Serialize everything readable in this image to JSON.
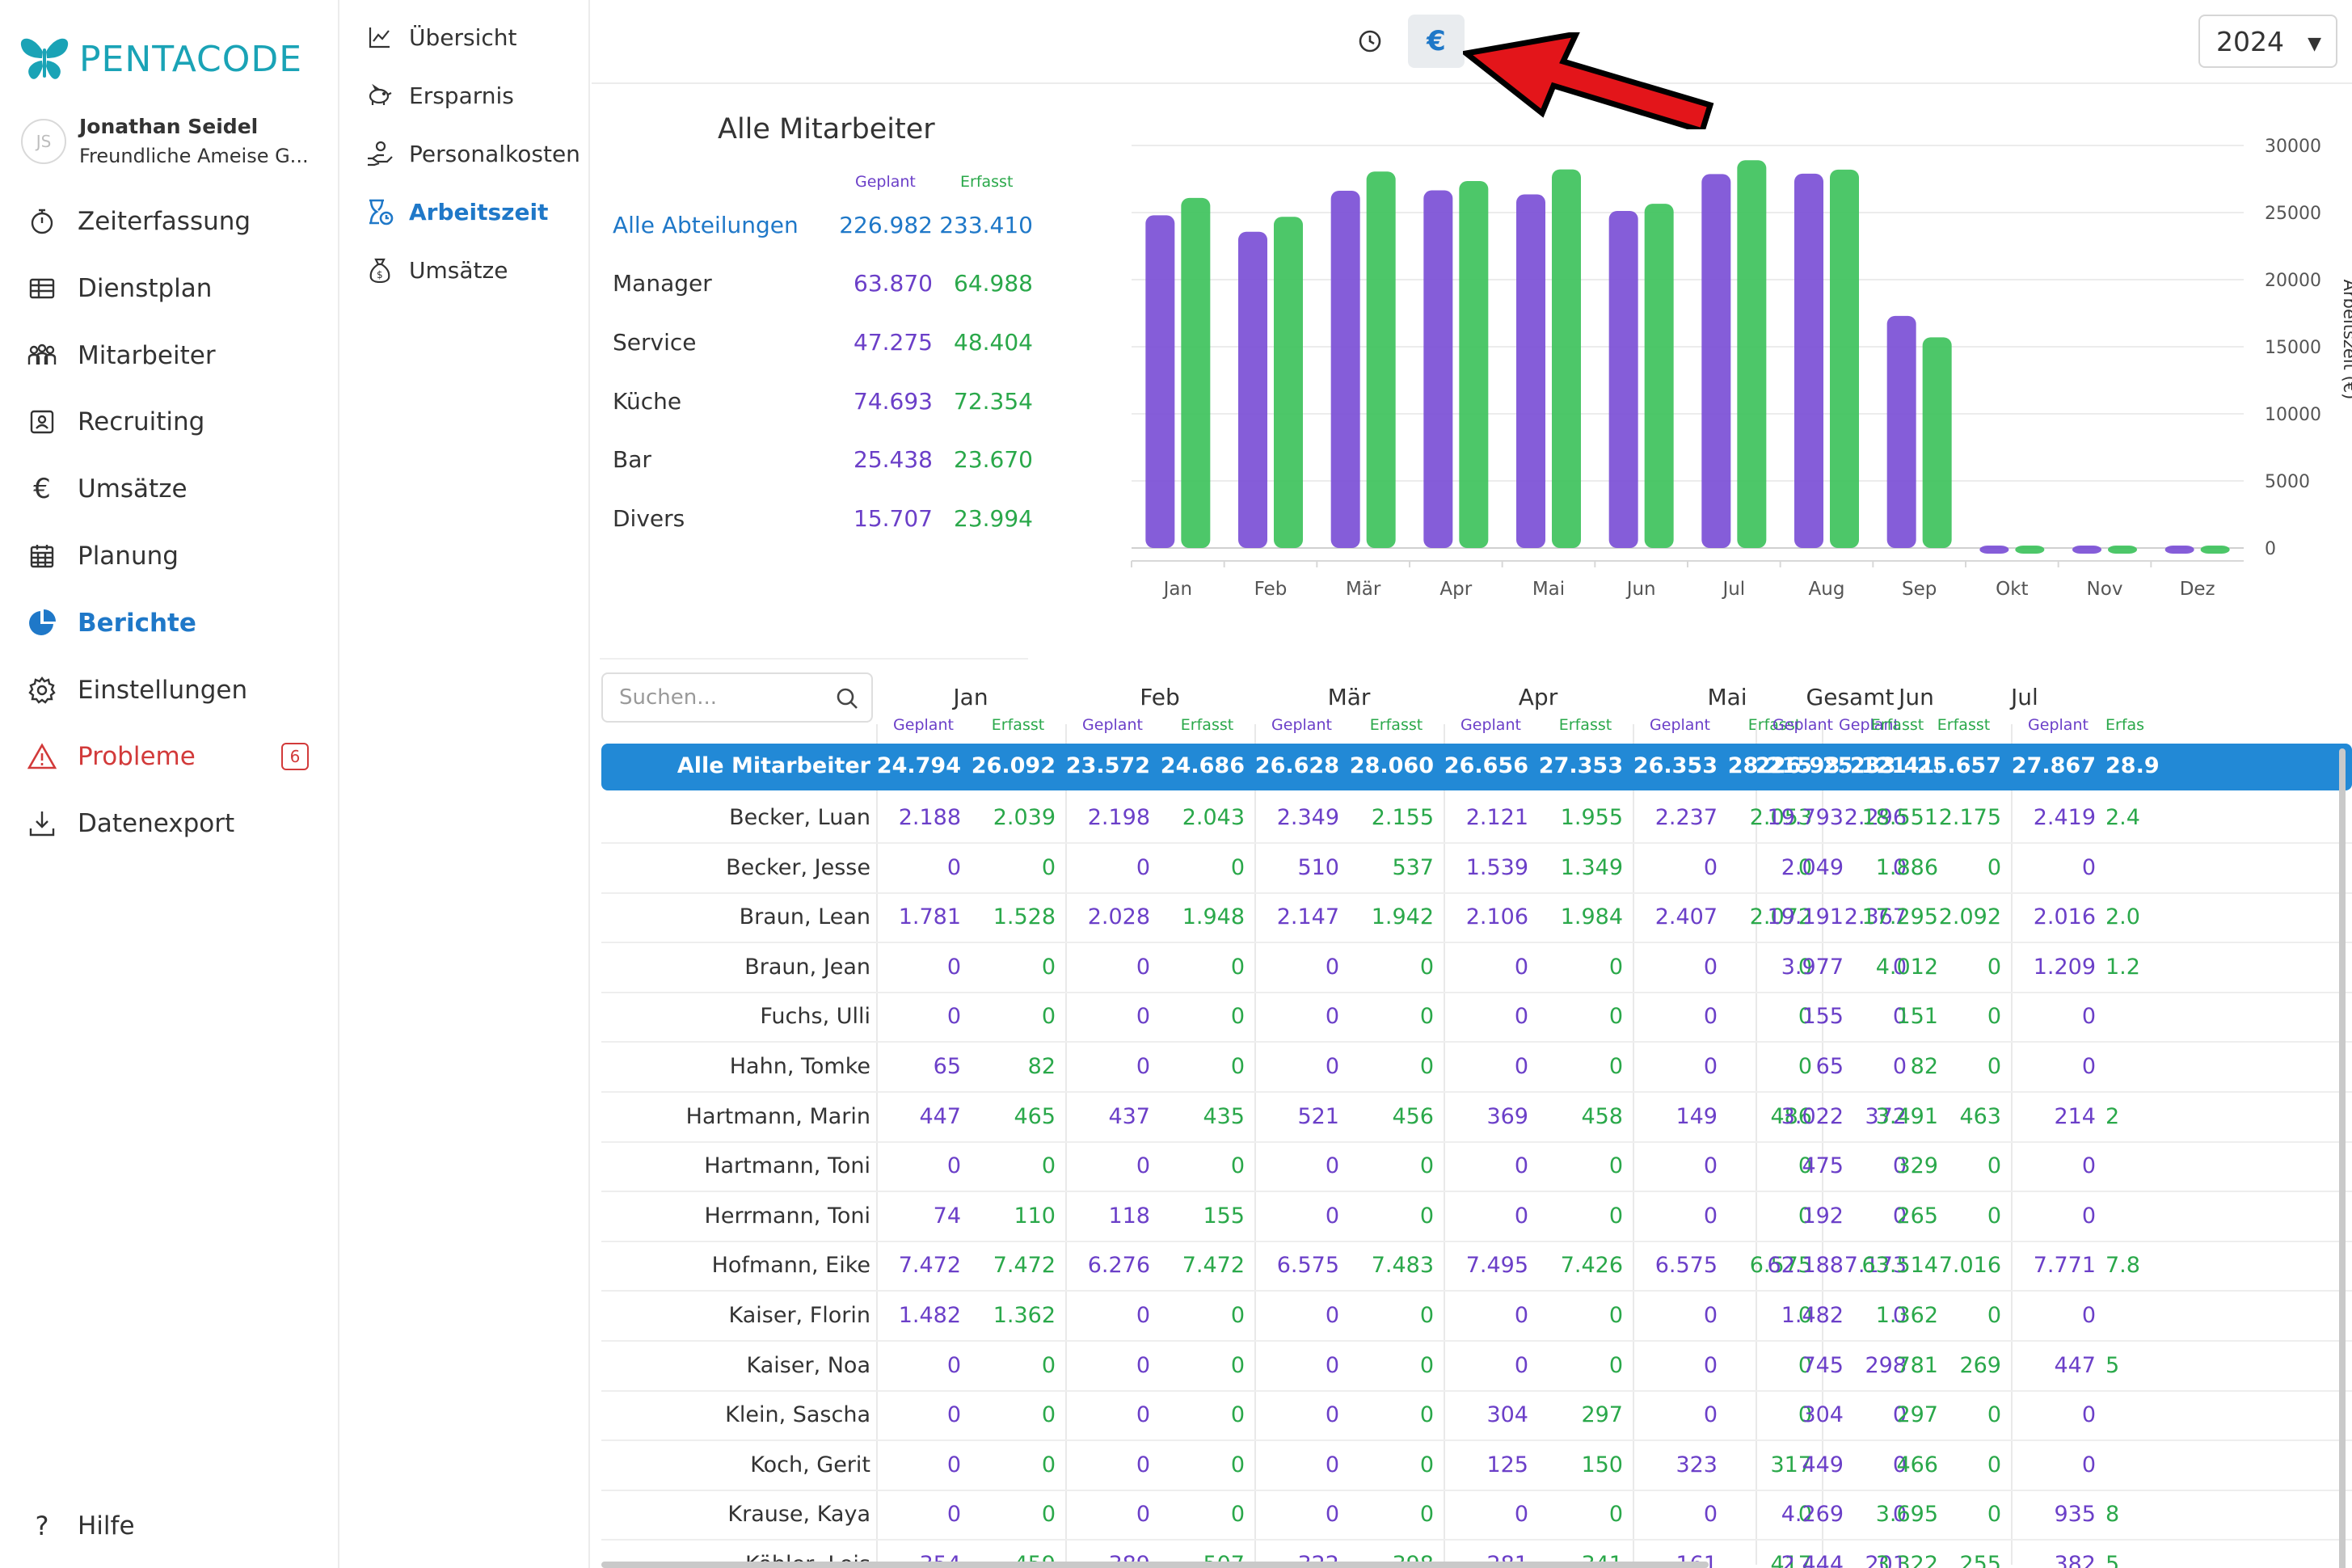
{
  "brand": {
    "name": "PENTACODE"
  },
  "user": {
    "initials": "JS",
    "name": "Jonathan Seidel",
    "company": "Freundliche Ameise G..."
  },
  "nav": [
    {
      "label": "Zeiterfassung",
      "icon": "stopwatch-icon"
    },
    {
      "label": "Dienstplan",
      "icon": "table-icon"
    },
    {
      "label": "Mitarbeiter",
      "icon": "people-icon"
    },
    {
      "label": "Recruiting",
      "icon": "id-card-icon"
    },
    {
      "label": "Umsätze",
      "icon": "euro-icon"
    },
    {
      "label": "Planung",
      "icon": "calendar-icon"
    },
    {
      "label": "Berichte",
      "icon": "pie-chart-icon",
      "active": true
    },
    {
      "label": "Einstellungen",
      "icon": "gear-icon"
    },
    {
      "label": "Probleme",
      "icon": "warning-icon",
      "badge": "6"
    },
    {
      "label": "Datenexport",
      "icon": "download-icon"
    }
  ],
  "help": {
    "label": "Hilfe"
  },
  "subnav": [
    {
      "label": "Übersicht",
      "icon": "line-chart-icon"
    },
    {
      "label": "Ersparnis",
      "icon": "piggy-bank-icon"
    },
    {
      "label": "Personalkosten",
      "icon": "hand-coin-icon"
    },
    {
      "label": "Arbeitszeit",
      "icon": "hourglass-icon",
      "active": true
    },
    {
      "label": "Umsätze",
      "icon": "money-bag-icon"
    }
  ],
  "toolbar": {
    "euro_label": "€",
    "year": "2024"
  },
  "summary": {
    "title": "Alle Mitarbeiter",
    "col_planned": "Geplant",
    "col_recorded": "Erfasst",
    "rows": [
      {
        "name": "Alle Abteilungen",
        "planned": "226.982",
        "recorded": "233.410"
      },
      {
        "name": "Manager",
        "planned": "63.870",
        "recorded": "64.988"
      },
      {
        "name": "Service",
        "planned": "47.275",
        "recorded": "48.404"
      },
      {
        "name": "Küche",
        "planned": "74.693",
        "recorded": "72.354"
      },
      {
        "name": "Bar",
        "planned": "25.438",
        "recorded": "23.670"
      },
      {
        "name": "Divers",
        "planned": "15.707",
        "recorded": "23.994"
      }
    ]
  },
  "colors": {
    "planned": "#7b4fd6",
    "recorded": "#3ec25c",
    "accent": "#1f78c8",
    "problem": "#d23a3a"
  },
  "chart_data": {
    "type": "bar",
    "categories": [
      "Jan",
      "Feb",
      "Mär",
      "Apr",
      "Mai",
      "Jun",
      "Jul",
      "Aug",
      "Sep",
      "Okt",
      "Nov",
      "Dez"
    ],
    "series": [
      {
        "values": [
          24794,
          23572,
          26628,
          26656,
          26353,
          25121,
          27867,
          27900,
          17300,
          0,
          0,
          0
        ]
      },
      {
        "values": [
          26092,
          24686,
          28060,
          27353,
          28215,
          25657,
          28900,
          28200,
          15700,
          0,
          0,
          0
        ]
      }
    ],
    "ylabel": "Arbeitszeit (€)",
    "yticks": [
      "30000",
      "25000",
      "20000",
      "15000",
      "10000",
      "5000",
      "0"
    ],
    "ylim": [
      0,
      30000
    ],
    "axis_position": "right",
    "grid": true
  },
  "table": {
    "search_placeholder": "Suchen...",
    "sub_planned": "Geplant",
    "sub_recorded": "Erfasst",
    "sub_recorded_cut": "Erfas",
    "months": [
      "Jan",
      "Feb",
      "Mär",
      "Apr",
      "Mai",
      "Jun",
      "Jul"
    ],
    "total_label": "Gesamt",
    "all_row": {
      "name": "Alle Mitarbeiter",
      "values": [
        "24.794",
        "26.092",
        "23.572",
        "24.686",
        "26.628",
        "28.060",
        "26.656",
        "27.353",
        "26.353",
        "28.215",
        "25.121",
        "25.657",
        "27.867",
        "28.9"
      ],
      "total_planned": "226.982",
      "total_recorded": "233.410"
    },
    "rows": [
      {
        "name": "Becker, Luan",
        "values": [
          "2.188",
          "2.039",
          "2.198",
          "2.043",
          "2.349",
          "2.155",
          "2.121",
          "1.955",
          "2.237",
          "2.053",
          "2.296",
          "2.175",
          "2.419",
          "2.4"
        ],
        "total_planned": "19.793",
        "total_recorded": "18.551"
      },
      {
        "name": "Becker, Jesse",
        "values": [
          "0",
          "0",
          "0",
          "0",
          "510",
          "537",
          "1.539",
          "1.349",
          "0",
          "0",
          "0",
          "0",
          "0",
          ""
        ],
        "total_planned": "2.049",
        "total_recorded": "1.886"
      },
      {
        "name": "Braun, Lean",
        "values": [
          "1.781",
          "1.528",
          "2.028",
          "1.948",
          "2.147",
          "1.942",
          "2.106",
          "1.984",
          "2.407",
          "2.072",
          "2.367",
          "2.092",
          "2.016",
          "2.0"
        ],
        "total_planned": "19.191",
        "total_recorded": "17.295"
      },
      {
        "name": "Braun, Jean",
        "values": [
          "0",
          "0",
          "0",
          "0",
          "0",
          "0",
          "0",
          "0",
          "0",
          "0",
          "0",
          "0",
          "1.209",
          "1.2"
        ],
        "total_planned": "3.977",
        "total_recorded": "4.012"
      },
      {
        "name": "Fuchs, Ulli",
        "values": [
          "0",
          "0",
          "0",
          "0",
          "0",
          "0",
          "0",
          "0",
          "0",
          "0",
          "0",
          "0",
          "0",
          ""
        ],
        "total_planned": "155",
        "total_recorded": "151"
      },
      {
        "name": "Hahn, Tomke",
        "values": [
          "65",
          "82",
          "0",
          "0",
          "0",
          "0",
          "0",
          "0",
          "0",
          "0",
          "0",
          "0",
          "0",
          ""
        ],
        "total_planned": "65",
        "total_recorded": "82"
      },
      {
        "name": "Hartmann, Marin",
        "values": [
          "447",
          "465",
          "437",
          "435",
          "521",
          "456",
          "369",
          "458",
          "149",
          "486",
          "372",
          "463",
          "214",
          "2"
        ],
        "total_planned": "3.022",
        "total_recorded": "3.491"
      },
      {
        "name": "Hartmann, Toni",
        "values": [
          "0",
          "0",
          "0",
          "0",
          "0",
          "0",
          "0",
          "0",
          "0",
          "0",
          "0",
          "0",
          "0",
          ""
        ],
        "total_planned": "475",
        "total_recorded": "329"
      },
      {
        "name": "Herrmann, Toni",
        "values": [
          "74",
          "110",
          "118",
          "155",
          "0",
          "0",
          "0",
          "0",
          "0",
          "0",
          "0",
          "0",
          "0",
          ""
        ],
        "total_planned": "192",
        "total_recorded": "265"
      },
      {
        "name": "Hofmann, Eike",
        "values": [
          "7.472",
          "7.472",
          "6.276",
          "7.472",
          "6.575",
          "7.483",
          "7.495",
          "7.426",
          "6.575",
          "6.575",
          "7.173",
          "7.016",
          "7.771",
          "7.8"
        ],
        "total_planned": "62.188",
        "total_recorded": "63.514"
      },
      {
        "name": "Kaiser, Florin",
        "values": [
          "1.482",
          "1.362",
          "0",
          "0",
          "0",
          "0",
          "0",
          "0",
          "0",
          "0",
          "0",
          "0",
          "0",
          ""
        ],
        "total_planned": "1.482",
        "total_recorded": "1.362"
      },
      {
        "name": "Kaiser, Noa",
        "values": [
          "0",
          "0",
          "0",
          "0",
          "0",
          "0",
          "0",
          "0",
          "0",
          "0",
          "298",
          "269",
          "447",
          "5"
        ],
        "total_planned": "745",
        "total_recorded": "781"
      },
      {
        "name": "Klein, Sascha",
        "values": [
          "0",
          "0",
          "0",
          "0",
          "0",
          "0",
          "304",
          "297",
          "0",
          "0",
          "0",
          "0",
          "0",
          ""
        ],
        "total_planned": "304",
        "total_recorded": "297"
      },
      {
        "name": "Koch, Gerit",
        "values": [
          "0",
          "0",
          "0",
          "0",
          "0",
          "0",
          "125",
          "150",
          "323",
          "317",
          "0",
          "0",
          "0",
          ""
        ],
        "total_planned": "449",
        "total_recorded": "466"
      },
      {
        "name": "Krause, Kaya",
        "values": [
          "0",
          "0",
          "0",
          "0",
          "0",
          "0",
          "0",
          "0",
          "0",
          "0",
          "0",
          "0",
          "935",
          "8"
        ],
        "total_planned": "4.269",
        "total_recorded": "3.695"
      },
      {
        "name": "Köhler, Lois",
        "values": [
          "354",
          "459",
          "389",
          "507",
          "322",
          "398",
          "281",
          "341",
          "161",
          "417",
          "201",
          "255",
          "382",
          "5"
        ],
        "total_planned": "2.444",
        "total_recorded": "3.322"
      }
    ]
  }
}
